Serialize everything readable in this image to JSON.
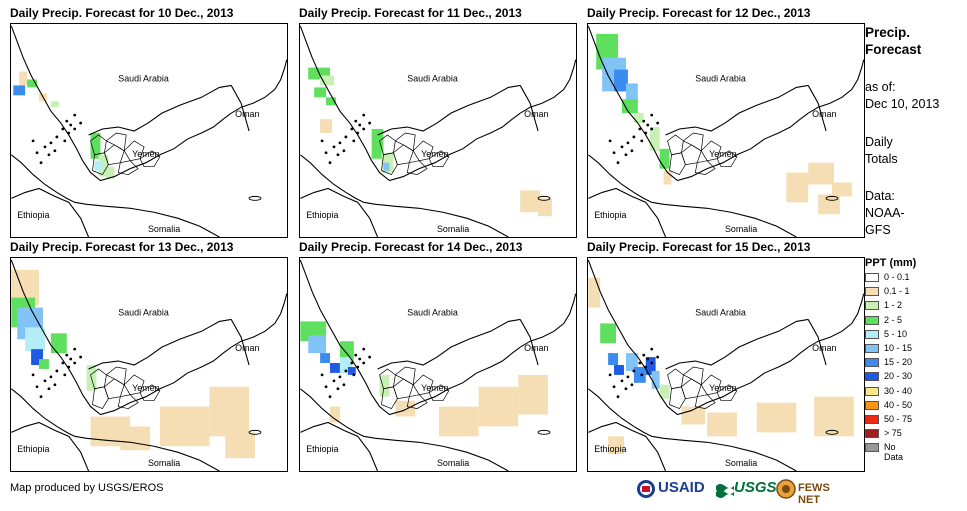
{
  "panels": [
    {
      "title": "Daily Precip. Forecast for 10 Dec., 2013"
    },
    {
      "title": "Daily Precip. Forecast for 11 Dec., 2013"
    },
    {
      "title": "Daily Precip. Forecast for 12 Dec., 2013"
    },
    {
      "title": "Daily Precip. Forecast for 13 Dec., 2013"
    },
    {
      "title": "Daily Precip. Forecast for 14 Dec., 2013"
    },
    {
      "title": "Daily Precip. Forecast for 15 Dec., 2013"
    }
  ],
  "map_labels": {
    "saudi": "Saudi Arabia",
    "oman": "Oman",
    "yemen": "Yemen",
    "ethiopia": "Ethiopia",
    "somalia": "Somalia"
  },
  "side": {
    "heading_line1": "Precip.",
    "heading_line2": "Forecast",
    "asof_line1": "as of:",
    "asof_line2": "Dec 10, 2013",
    "totals_line1": "Daily",
    "totals_line2": "Totals",
    "data_line1": "Data:",
    "data_line2": "NOAA-",
    "data_line3": "GFS"
  },
  "legend": {
    "title": "PPT (mm)",
    "items": [
      {
        "label": "0 - 0.1",
        "color": "#ffffff"
      },
      {
        "label": "0.1 - 1",
        "color": "#f5deb3"
      },
      {
        "label": "1 - 2",
        "color": "#c8f0b4"
      },
      {
        "label": "2 - 5",
        "color": "#5ee05e"
      },
      {
        "label": "5 - 10",
        "color": "#b4ecf8"
      },
      {
        "label": "10 - 15",
        "color": "#82c3f5"
      },
      {
        "label": "15 - 20",
        "color": "#3c8cf0"
      },
      {
        "label": "20 - 30",
        "color": "#1e5ae6"
      },
      {
        "label": "30 - 40",
        "color": "#fae68c"
      },
      {
        "label": "40 - 50",
        "color": "#fa9614"
      },
      {
        "label": "50 - 75",
        "color": "#f02814"
      },
      {
        "label": "> 75",
        "color": "#a01e1e"
      },
      {
        "label": "No Data",
        "color": "#969696"
      }
    ]
  },
  "credit": "Map produced by USGS/EROS",
  "logos": {
    "usaid": "USAID",
    "usgs": "USGS",
    "fews": "FEWS NET"
  }
}
